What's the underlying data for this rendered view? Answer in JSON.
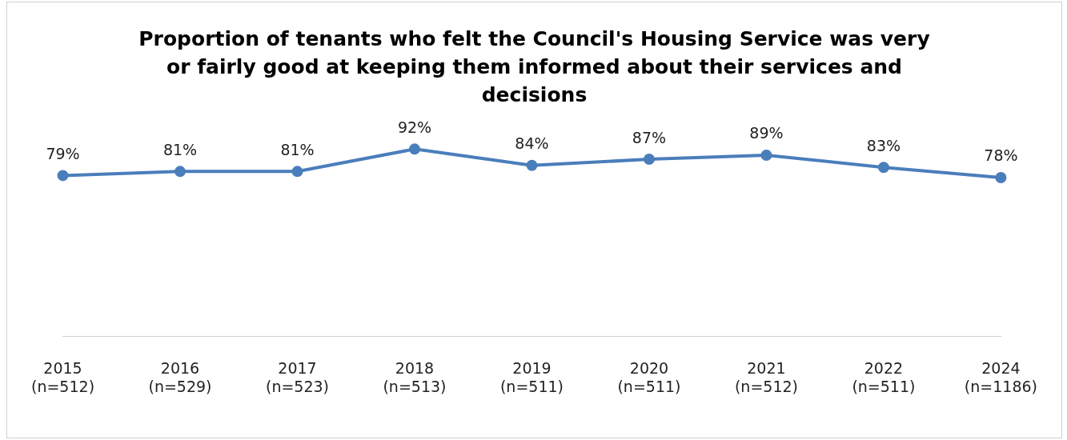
{
  "chart_data": {
    "type": "line",
    "title": "Proportion of tenants who felt the Council's Housing Service was very or fairly good at keeping them informed about their services and decisions",
    "categories": [
      "2015 (n=512)",
      "2016 (n=529)",
      "2017 (n=523)",
      "2018 (n=513)",
      "2019 (n=511)",
      "2020 (n=511)",
      "2021 (n=512)",
      "2022 (n=511)",
      "2024 (n=1186)"
    ],
    "series": [
      {
        "color": "#4a7ebb",
        "values": [
          79,
          81,
          81,
          92,
          84,
          87,
          89,
          83,
          78
        ],
        "value_labels": [
          "79%",
          "81%",
          "81%",
          "92%",
          "84%",
          "87%",
          "89%",
          "83%",
          "78%"
        ]
      }
    ],
    "tick_labels": "x",
    "marker": "circle",
    "line_style": "solid",
    "grid": false,
    "legend": false
  }
}
